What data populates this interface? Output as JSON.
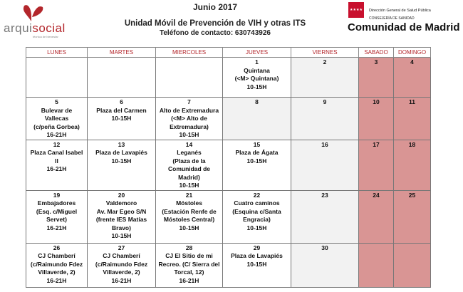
{
  "header": {
    "month": "Junio 2017",
    "title": "Unidad Móvil de Prevención de VIH y otras ITS",
    "phone": "Teléfono de contacto: 630743926"
  },
  "logo_left": {
    "brand_a": "arqui",
    "brand_b": "social",
    "tagline": "técnica de bienestar"
  },
  "logo_right": {
    "line1": "Dirección General de Salud Pública",
    "line2": "CONSEJERÍA DE SANIDAD",
    "line3": "Comunidad de Madrid"
  },
  "colors": {
    "weekend": "#d99594",
    "friday": "#f2f2f2",
    "header_text": "#b3262b"
  },
  "days": [
    "LUNES",
    "MARTES",
    "MIERCOLES",
    "JUEVES",
    "VIERNES",
    "SABADO",
    "DOMINGO"
  ],
  "weeks": [
    [
      null,
      null,
      null,
      {
        "d": "1",
        "lines": [
          "Quintana",
          "(<M> Quintana)",
          "10-15H"
        ]
      },
      {
        "d": "2",
        "lines": []
      },
      {
        "d": "3",
        "lines": []
      },
      {
        "d": "4",
        "lines": []
      }
    ],
    [
      {
        "d": "5",
        "lines": [
          "Bulevar de",
          "Vallecas",
          "(c/peña Gorbea)",
          "16-21H"
        ]
      },
      {
        "d": "6",
        "lines": [
          "Plaza del Carmen",
          "10-15H"
        ]
      },
      {
        "d": "7",
        "lines": [
          "Alto de Extremadura",
          "(<M> Alto de",
          "Extremadura)",
          "10-15H"
        ]
      },
      {
        "d": "8",
        "lines": []
      },
      {
        "d": "9",
        "lines": []
      },
      {
        "d": "10",
        "lines": []
      },
      {
        "d": "11",
        "lines": []
      }
    ],
    [
      {
        "d": "12",
        "lines": [
          "Plaza Canal Isabel",
          "II",
          "16-21H"
        ]
      },
      {
        "d": "13",
        "lines": [
          "Plaza de Lavapiés",
          "10-15H"
        ]
      },
      {
        "d": "14",
        "lines": [
          "Leganés",
          "(Plaza de la",
          "Comunidad de",
          "Madrid)",
          "10-15H"
        ]
      },
      {
        "d": "15",
        "lines": [
          "Plaza de Ágata",
          "10-15H"
        ]
      },
      {
        "d": "16",
        "lines": []
      },
      {
        "d": "17",
        "lines": []
      },
      {
        "d": "18",
        "lines": []
      }
    ],
    [
      {
        "d": "19",
        "lines": [
          "Embajadores",
          "(Esq. c/Miguel",
          "Servet)",
          "16-21H"
        ]
      },
      {
        "d": "20",
        "lines": [
          "Valdemoro",
          "Av. Mar Egeo S/N",
          "(frente IES Matías",
          "Bravo)",
          "10-15H"
        ]
      },
      {
        "d": "21",
        "lines": [
          "Móstoles",
          "(Estación Renfe de",
          "Móstoles Central)",
          "10-15H"
        ]
      },
      {
        "d": "22",
        "lines": [
          "Cuatro caminos",
          "(Esquina c/Santa",
          "Engracia)",
          "10-15H"
        ]
      },
      {
        "d": "23",
        "lines": []
      },
      {
        "d": "24",
        "lines": []
      },
      {
        "d": "25",
        "lines": []
      }
    ],
    [
      {
        "d": "26",
        "lines": [
          "CJ Chamberí",
          "(c/Raimundo Fdez",
          "Villaverde, 2)",
          "16-21H"
        ]
      },
      {
        "d": "27",
        "lines": [
          "CJ Chamberí",
          "(c/Raimundo Fdez",
          "Villaverde, 2)",
          "16-21H"
        ]
      },
      {
        "d": "28",
        "lines": [
          "CJ El Sitio de mi",
          "Recreo. (C/ Sierra del",
          "Torcal, 12)",
          "16-21H"
        ]
      },
      {
        "d": "29",
        "lines": [
          "Plaza de Lavapiés",
          "10-15H"
        ]
      },
      {
        "d": "30",
        "lines": []
      },
      null,
      null
    ]
  ]
}
